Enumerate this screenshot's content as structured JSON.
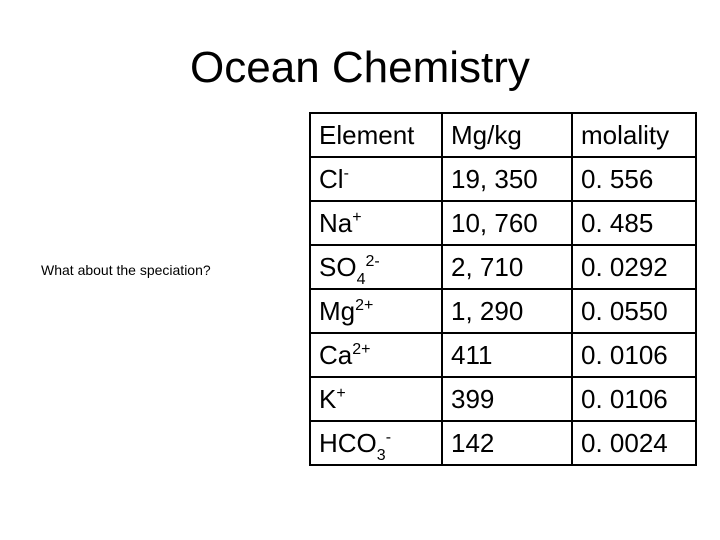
{
  "title": "Ocean Chemistry",
  "note": "What about the speciation?",
  "table": {
    "headers": [
      "Element",
      "Mg/kg",
      "molality"
    ],
    "rows": [
      {
        "element": "Cl",
        "sub": "",
        "sup": "-",
        "mgkg": "19, 350",
        "molality": "0. 556"
      },
      {
        "element": "Na",
        "sub": "",
        "sup": "+",
        "mgkg": "10, 760",
        "molality": "0. 485"
      },
      {
        "element": "SO",
        "sub": "4",
        "sup": "2-",
        "mgkg": "2, 710",
        "molality": "0. 0292"
      },
      {
        "element": "Mg",
        "sub": "",
        "sup": "2+",
        "mgkg": "1, 290",
        "molality": "0. 0550"
      },
      {
        "element": "Ca",
        "sub": "",
        "sup": "2+",
        "mgkg": "411",
        "molality": "0. 0106"
      },
      {
        "element": "K",
        "sub": "",
        "sup": "+",
        "mgkg": "399",
        "molality": "0. 0106"
      },
      {
        "element": "HCO",
        "sub": "3",
        "sup": "-",
        "mgkg": "142",
        "molality": "0. 0024"
      }
    ]
  }
}
